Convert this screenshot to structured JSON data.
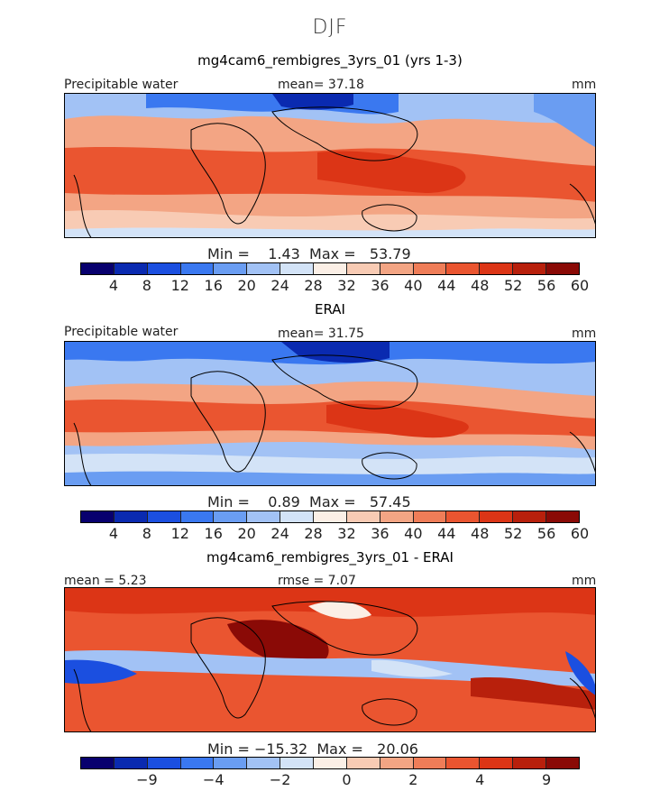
{
  "figure": {
    "title": "DJF"
  },
  "panels": [
    {
      "title": "mg4cam6_rembigres_3yrs_01 (yrs 1-3)",
      "left_label": "Precipitable water",
      "center_label": "mean=  37.18",
      "units": "mm",
      "minmax": "Min =    1.43  Max =   53.79",
      "colorbar": {
        "colors": [
          "#08006e",
          "#0a2ab0",
          "#1b4fe0",
          "#3a78f0",
          "#6a9df2",
          "#a2c2f5",
          "#d3e3f7",
          "#fbefe6",
          "#f8cbb4",
          "#f3a584",
          "#ef7d58",
          "#ea5530",
          "#dc3516",
          "#b8200c",
          "#8a0a06"
        ],
        "ticks": [
          "4",
          "8",
          "12",
          "16",
          "20",
          "24",
          "28",
          "32",
          "36",
          "40",
          "44",
          "48",
          "52",
          "56",
          "60"
        ]
      }
    },
    {
      "title": "ERAI",
      "left_label": "Precipitable water",
      "center_label": "mean=  31.75",
      "units": "mm",
      "minmax": "Min =    0.89  Max =   57.45",
      "colorbar": {
        "colors": [
          "#08006e",
          "#0a2ab0",
          "#1b4fe0",
          "#3a78f0",
          "#6a9df2",
          "#a2c2f5",
          "#d3e3f7",
          "#fbefe6",
          "#f8cbb4",
          "#f3a584",
          "#ef7d58",
          "#ea5530",
          "#dc3516",
          "#b8200c",
          "#8a0a06"
        ],
        "ticks": [
          "4",
          "8",
          "12",
          "16",
          "20",
          "24",
          "28",
          "32",
          "36",
          "40",
          "44",
          "48",
          "52",
          "56",
          "60"
        ]
      }
    },
    {
      "title": "mg4cam6_rembigres_3yrs_01 - ERAI",
      "left_label": "mean =    5.23",
      "center_label": "rmse =    7.07",
      "units": "mm",
      "minmax": "Min = −15.32  Max =   20.06",
      "colorbar": {
        "colors": [
          "#08006e",
          "#0a2ab0",
          "#1b4fe0",
          "#3a78f0",
          "#6a9df2",
          "#a2c2f5",
          "#d3e3f7",
          "#fbefe6",
          "#f8cbb4",
          "#f3a584",
          "#ef7d58",
          "#ea5530",
          "#dc3516",
          "#b8200c",
          "#8a0a06"
        ],
        "ticks": [
          "−9",
          "−4",
          "−2",
          "0",
          "2",
          "4",
          "9"
        ]
      }
    }
  ]
}
